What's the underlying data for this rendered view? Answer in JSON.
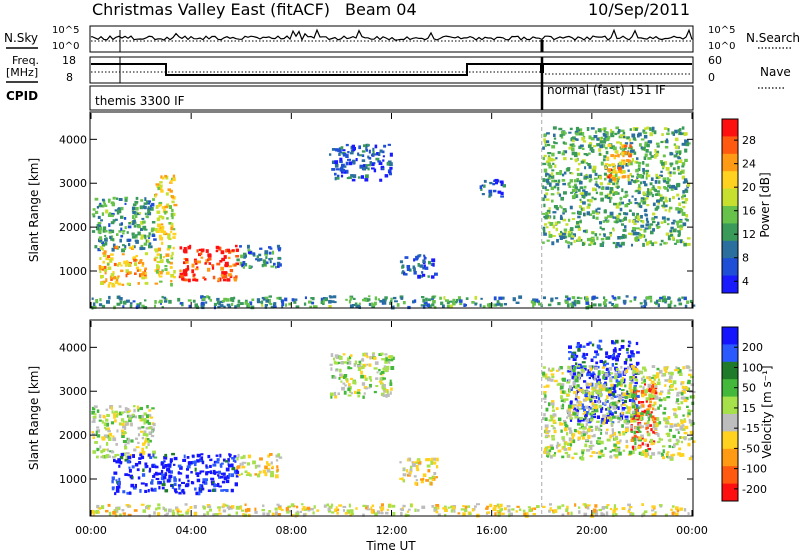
{
  "header": {
    "title": "Christmas Valley East (fitACF)",
    "beam": "Beam 04",
    "date": "10/Sep/2011"
  },
  "strip_panels": {
    "nsky_label": "N.Sky",
    "nsky_ticks": [
      "10^5",
      "10^0"
    ],
    "nsearch_label": "N.Search",
    "nsearch_ticks": [
      "10^5",
      "10^0"
    ],
    "freq_label": "Freq.",
    "freq_unit": "[MHz]",
    "freq_ticks": [
      "18",
      "8"
    ],
    "nave_label": "Nave",
    "nave_ticks": [
      "60",
      "0"
    ],
    "cpid_label": "CPID",
    "cpid_segments": [
      {
        "start_hour": 0.0,
        "label": "themis 3300 IF"
      },
      {
        "start_hour": 18.0,
        "label": "normal (fast) 151 IF"
      }
    ]
  },
  "power_panel": {
    "ylabel": "Slant Range [km]",
    "yticks": [
      "4000",
      "3000",
      "2000",
      "1000"
    ],
    "colorbar_label": "Power [dB]",
    "colorbar_ticks": [
      "28",
      "24",
      "20",
      "16",
      "12",
      "8",
      "4"
    ],
    "colors": [
      "#1a1aff",
      "#1f4fd6",
      "#2a6f9e",
      "#3a9a5a",
      "#66c24a",
      "#c7e030",
      "#ffd21f",
      "#ff9a14",
      "#ff5a10",
      "#ff1010"
    ]
  },
  "velocity_panel": {
    "ylabel": "Slant Range [km]",
    "yticks": [
      "4000",
      "3000",
      "2000",
      "1000"
    ],
    "colorbar_label": "Velocity [m s⁻¹]",
    "colorbar_ticks": [
      "200",
      "100",
      "50",
      "15",
      "-15",
      "-50",
      "-100",
      "-200"
    ],
    "colors": [
      "#1414ff",
      "#2a5aff",
      "#1f7a2a",
      "#44b83a",
      "#a6e04a",
      "#bdbdbd",
      "#ffd21f",
      "#ff9a14",
      "#ff5a10",
      "#ff1010"
    ]
  },
  "x_axis": {
    "label": "Time UT",
    "ticks": [
      "00:00",
      "04:00",
      "08:00",
      "12:00",
      "16:00",
      "20:00",
      "00:00"
    ]
  },
  "chart_data": {
    "type": "heatmap",
    "title": "Christmas Valley East (fitACF)",
    "subtitle": "Beam 04",
    "date": "10/Sep/2011",
    "xlabel": "Time UT",
    "ylabel": "Slant Range [km]",
    "xlim_hours": [
      0,
      24
    ],
    "ylim_km": [
      180,
      4600
    ],
    "panels": [
      {
        "name": "Power",
        "unit": "dB",
        "color_range": [
          0,
          30
        ],
        "echo_regions": [
          {
            "t0": 0.0,
            "t1": 2.5,
            "r0": 1500,
            "r1": 2700,
            "value": 10
          },
          {
            "t0": 0.3,
            "t1": 2.2,
            "r0": 700,
            "r1": 1600,
            "value": 20
          },
          {
            "t0": 2.5,
            "t1": 3.3,
            "r0": 700,
            "r1": 3200,
            "value": 18
          },
          {
            "t0": 3.5,
            "t1": 5.8,
            "r0": 800,
            "r1": 1600,
            "value": 27
          },
          {
            "t0": 5.8,
            "t1": 7.5,
            "r0": 1100,
            "r1": 1600,
            "value": 8
          },
          {
            "t0": 9.5,
            "t1": 12.0,
            "r0": 3100,
            "r1": 3900,
            "value": 5
          },
          {
            "t0": 12.3,
            "t1": 13.7,
            "r0": 900,
            "r1": 1400,
            "value": 5
          },
          {
            "t0": 15.5,
            "t1": 16.5,
            "r0": 2700,
            "r1": 3100,
            "value": 6
          },
          {
            "t0": 18.0,
            "t1": 23.8,
            "r0": 1600,
            "r1": 4300,
            "value": 12
          },
          {
            "t0": 20.5,
            "t1": 21.5,
            "r0": 3100,
            "r1": 3900,
            "value": 22
          },
          {
            "t0": 0.0,
            "t1": 24.0,
            "r0": 200,
            "r1": 450,
            "value": 10
          }
        ]
      },
      {
        "name": "Velocity",
        "unit": "m s-1",
        "color_range": [
          -200,
          200
        ],
        "echo_regions": [
          {
            "t0": 0.0,
            "t1": 2.5,
            "r0": 1500,
            "r1": 2700,
            "value": 0
          },
          {
            "t0": 0.8,
            "t1": 5.8,
            "r0": 700,
            "r1": 1600,
            "value": 180
          },
          {
            "t0": 5.8,
            "t1": 7.5,
            "r0": 1100,
            "r1": 1600,
            "value": -30
          },
          {
            "t0": 9.5,
            "t1": 12.0,
            "r0": 2900,
            "r1": 3900,
            "value": 0
          },
          {
            "t0": 12.3,
            "t1": 13.8,
            "r0": 900,
            "r1": 1500,
            "value": -40
          },
          {
            "t0": 19.0,
            "t1": 21.8,
            "r0": 2300,
            "r1": 4200,
            "value": 170
          },
          {
            "t0": 21.5,
            "t1": 22.5,
            "r0": 1700,
            "r1": 3200,
            "value": -150
          },
          {
            "t0": 18.0,
            "t1": 24.0,
            "r0": 1500,
            "r1": 3600,
            "value": 0
          },
          {
            "t0": 0.0,
            "t1": 24.0,
            "r0": 200,
            "r1": 450,
            "value": -30
          }
        ]
      }
    ]
  }
}
